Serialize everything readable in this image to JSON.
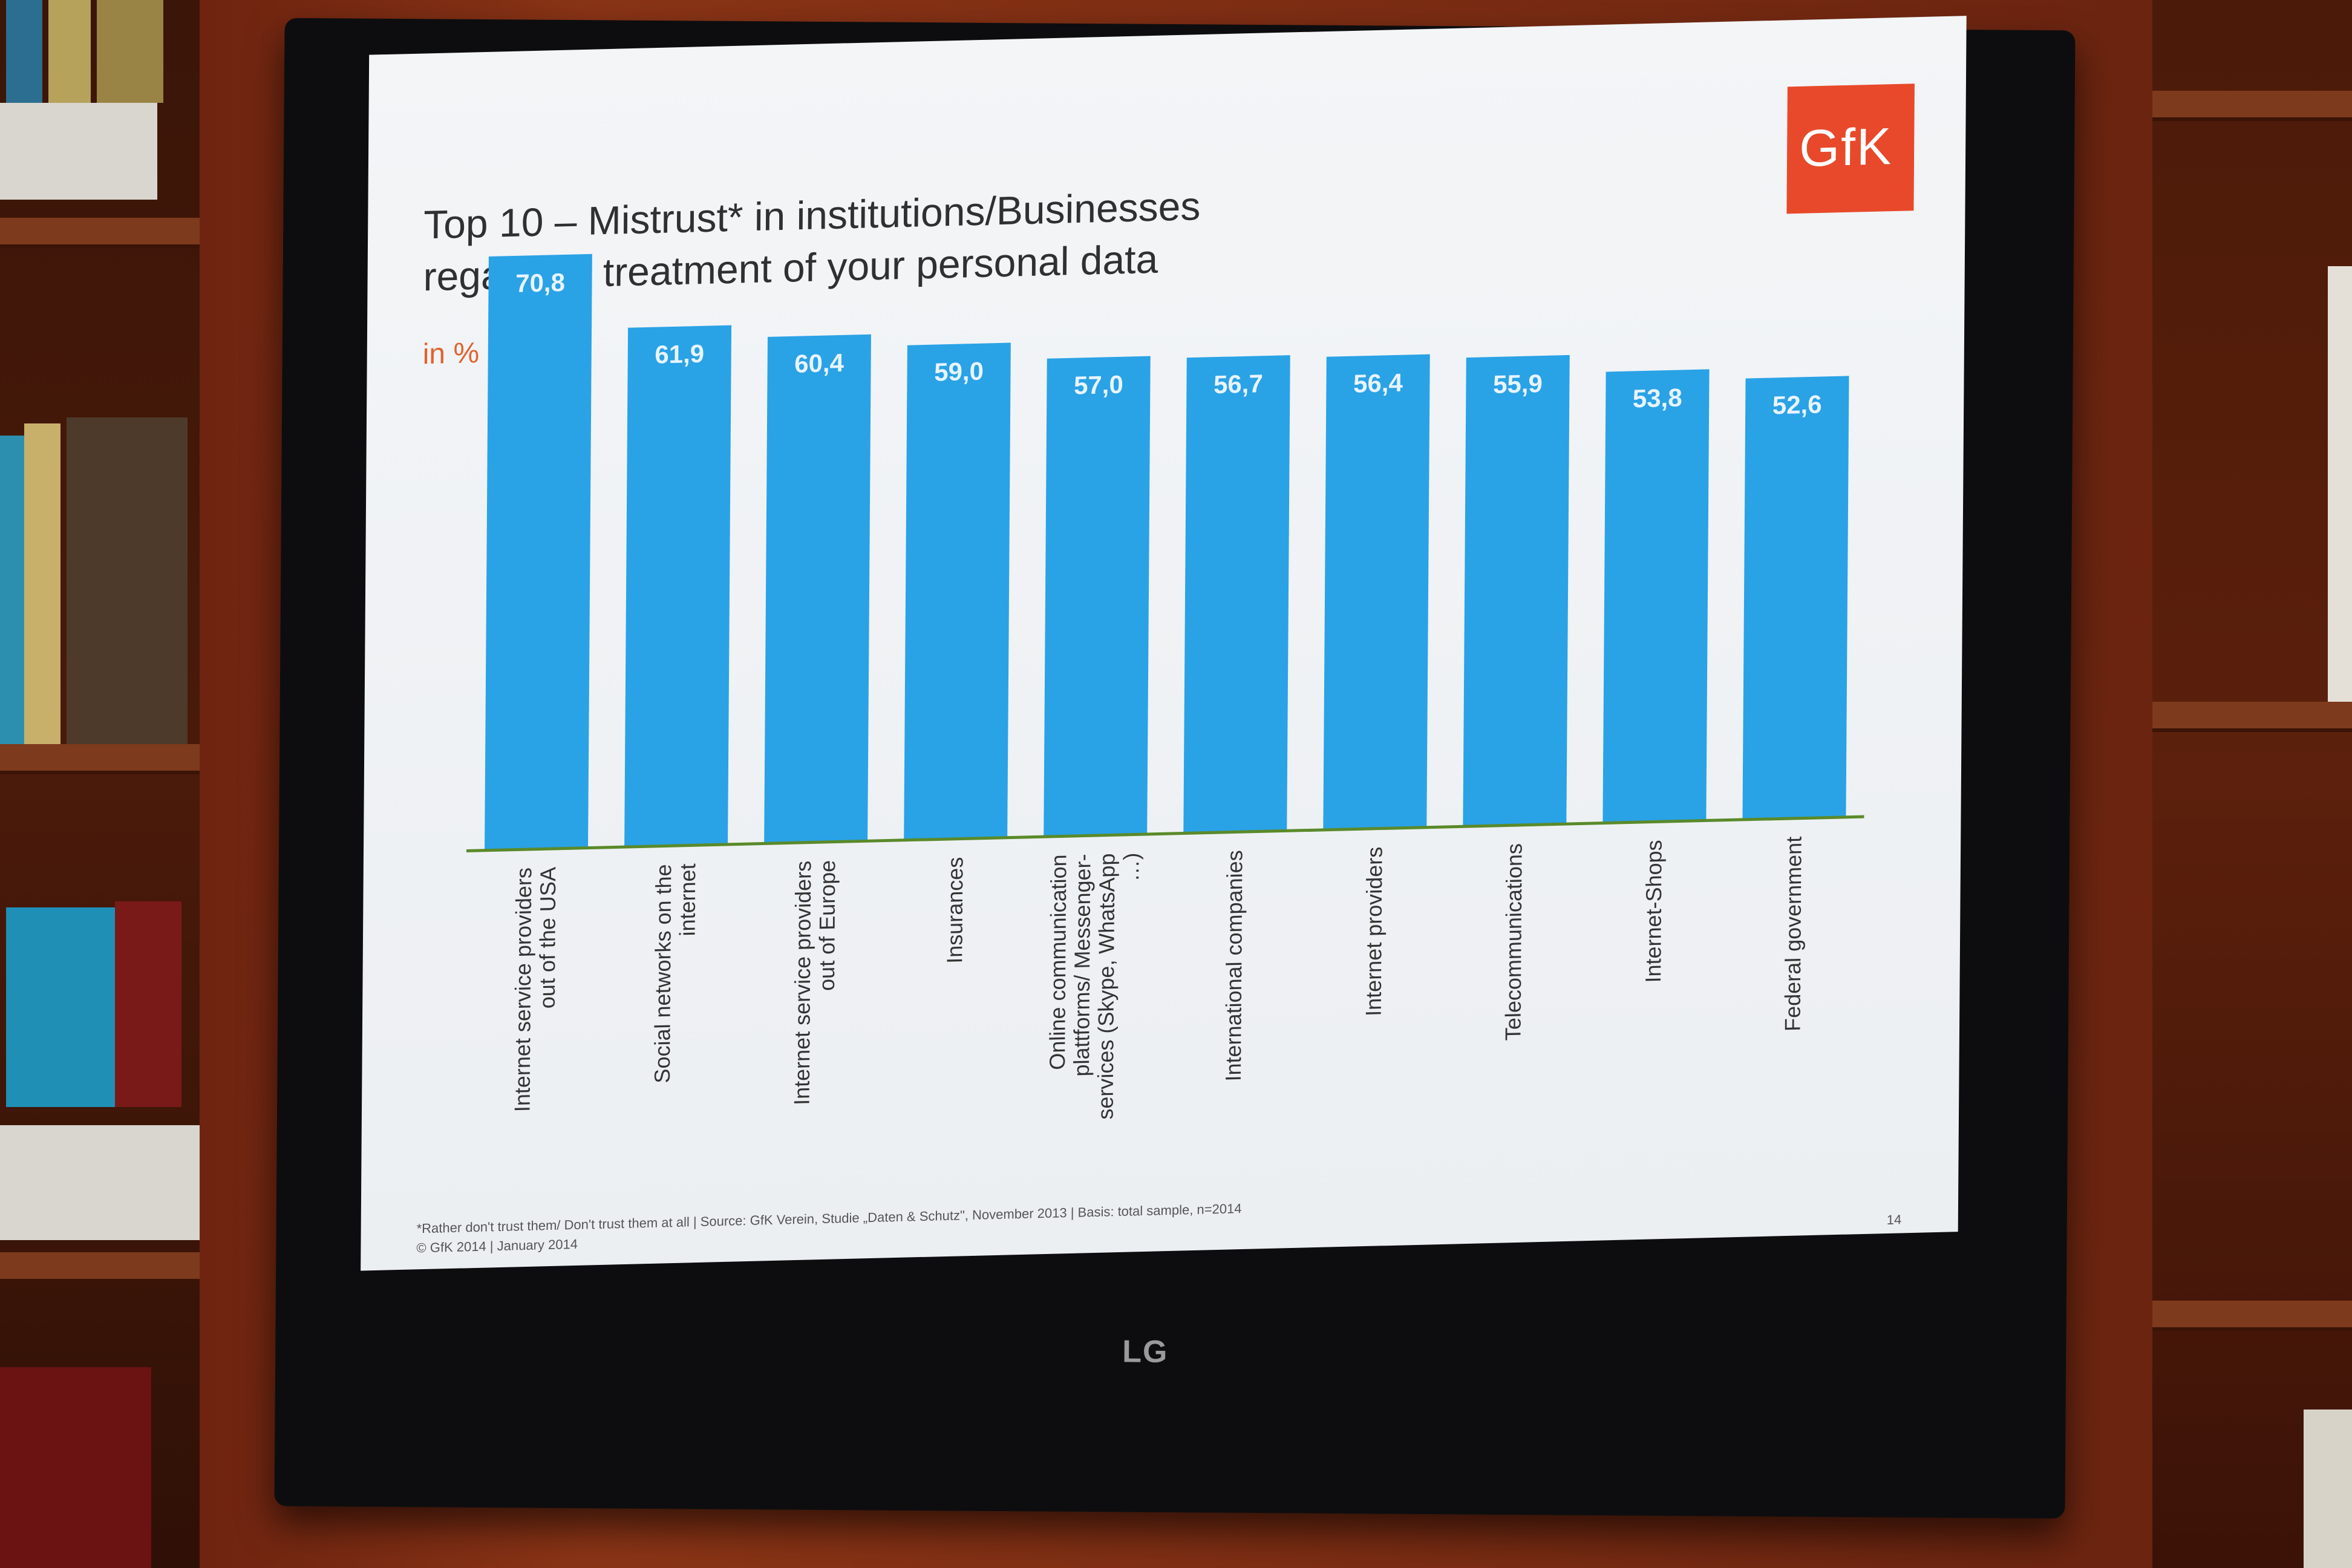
{
  "slide": {
    "title_line1": "Top 10 – Mistrust* in institutions/Businesses",
    "title_line2": "regarding treatment of your personal data",
    "unit_label": "in %",
    "logo_text": "GfK",
    "footnote": "*Rather don't trust them/ Don't trust them at all | Source: GfK Verein, Studie „Daten & Schutz\", November 2013 | Basis: total sample, n=2014",
    "copyright": "© GfK 2014 | January 2014",
    "page_number": "14"
  },
  "monitor": {
    "brand": "LG"
  },
  "colors": {
    "bar": "#2aa2e6",
    "baseline": "#5a8a2a",
    "value_label": "#e8f4ff",
    "logo": "#e8492a"
  },
  "chart_data": {
    "type": "bar",
    "title": "Top 10 – Mistrust* in institutions/Businesses regarding treatment of your personal data",
    "ylabel": "in %",
    "ylim": [
      0,
      75
    ],
    "grid": false,
    "legend": "none",
    "categories": [
      [
        "Internet service providers",
        "out of the USA"
      ],
      [
        "Social networks on the",
        "internet"
      ],
      [
        "Internet service providers",
        "out of Europe"
      ],
      [
        "Insurances"
      ],
      [
        "Online communication",
        "plattforms/ Messenger-",
        "services (Skype, WhatsApp",
        "…)"
      ],
      [
        "International companies"
      ],
      [
        "Internet providers"
      ],
      [
        "Telecommunications"
      ],
      [
        "Internet-Shops"
      ],
      [
        "Federal government"
      ]
    ],
    "values": [
      70.8,
      61.9,
      60.4,
      59.0,
      57.0,
      56.7,
      56.4,
      55.9,
      53.8,
      52.6
    ],
    "value_labels": [
      "70,8",
      "61,9",
      "60,4",
      "59,0",
      "57,0",
      "56,7",
      "56,4",
      "55,9",
      "53,8",
      "52,6"
    ]
  }
}
